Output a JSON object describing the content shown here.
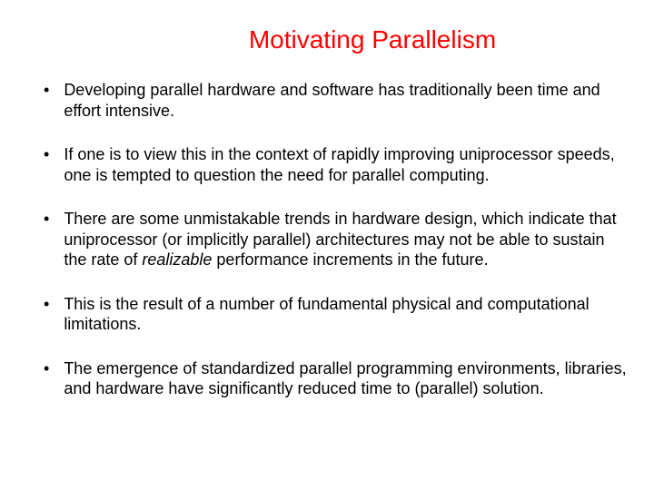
{
  "title": {
    "text": "Motivating Parallelism",
    "color": "#ff0000"
  },
  "bullets": [
    {
      "text": "Developing parallel hardware and software has traditionally been time and effort intensive."
    },
    {
      "text": "If one is to view this in the context of rapidly improving uniprocessor speeds, one is tempted to question the need for parallel computing."
    },
    {
      "pre": "There are some unmistakable trends in hardware design, which indicate that uniprocessor (or implicitly parallel) architectures may not be able to sustain the rate of ",
      "italic": "realizable",
      "post": " performance increments in the future."
    },
    {
      "text": "This is the result of a number of fundamental physical and computational limitations."
    },
    {
      "text": "The emergence of standardized parallel programming environments, libraries, and hardware have significantly reduced time to (parallel) solution."
    }
  ],
  "colors": {
    "title": "#ff0000",
    "body_text": "#000000",
    "background": "#ffffff"
  },
  "typography": {
    "title_fontsize": 28,
    "body_fontsize": 18,
    "font_family": "Arial"
  }
}
